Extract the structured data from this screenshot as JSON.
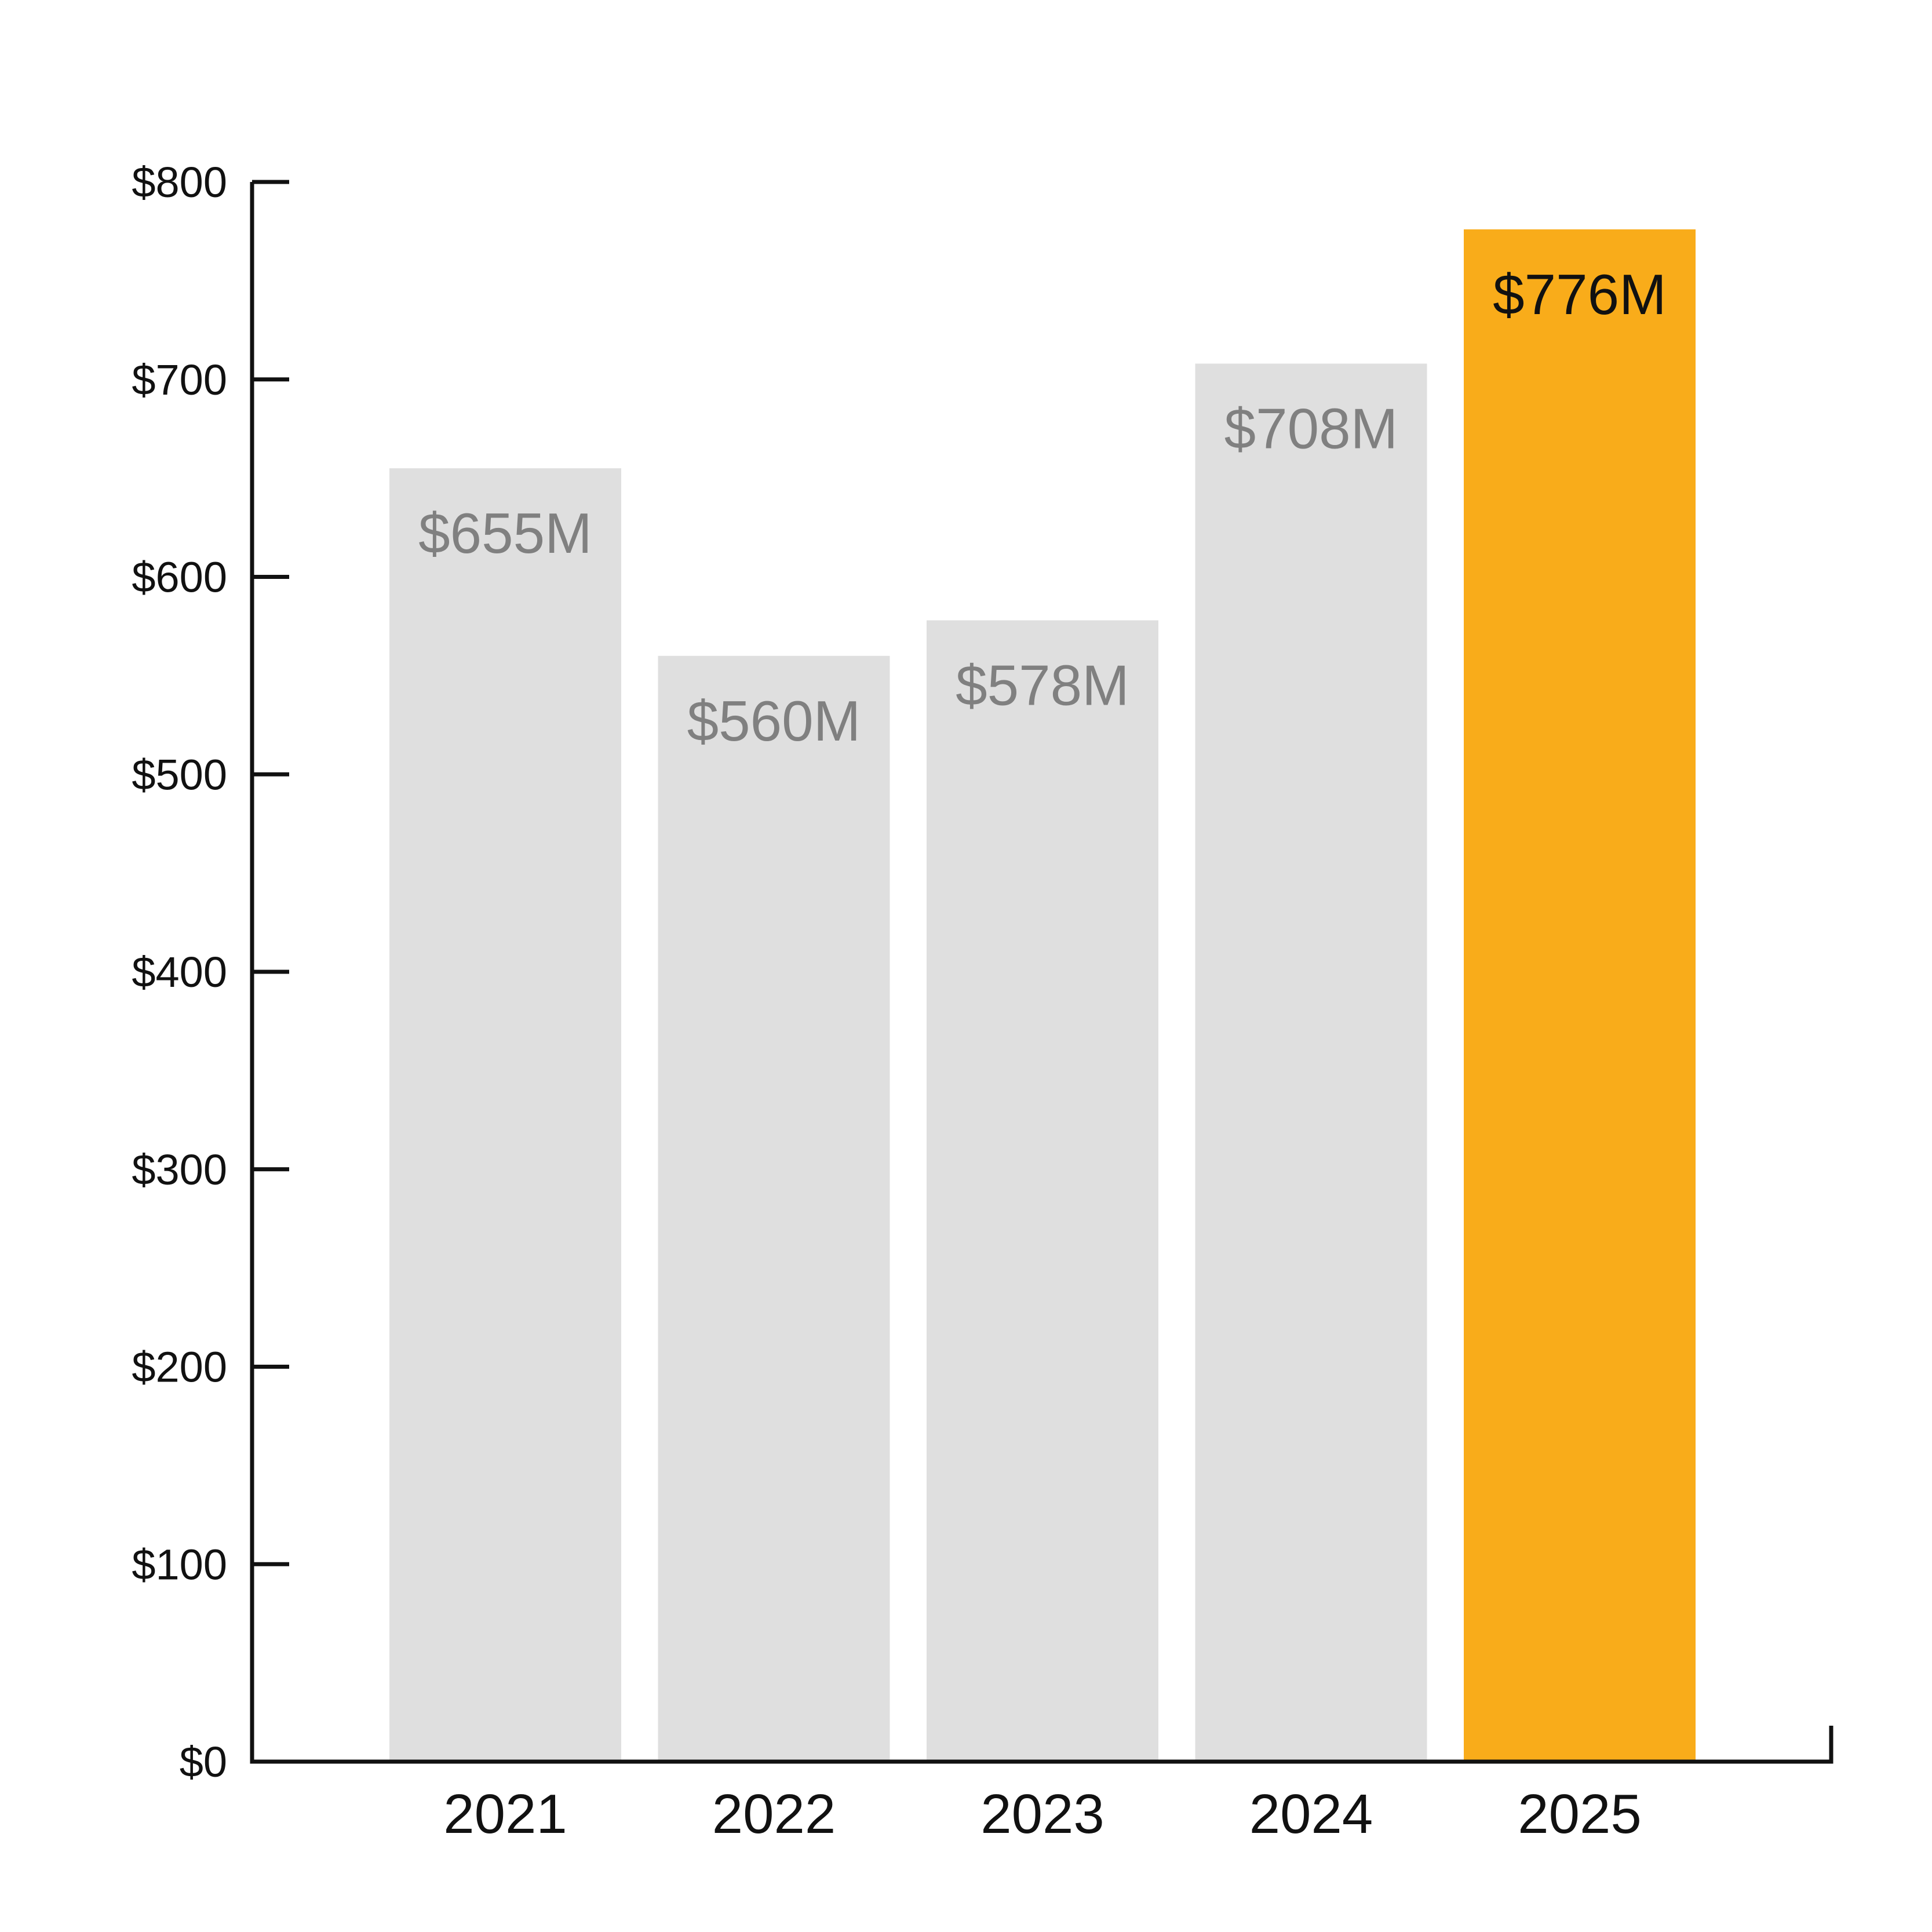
{
  "chart_data": {
    "type": "bar",
    "categories": [
      "2021",
      "2022",
      "2023",
      "2024",
      "2025"
    ],
    "values": [
      655,
      560,
      578,
      708,
      776
    ],
    "data_labels": [
      "$655M",
      "$560M",
      "$578M",
      "$708M",
      "$776M"
    ],
    "highlight_index": 4,
    "y_ticks": [
      0,
      100,
      200,
      300,
      400,
      500,
      600,
      700,
      800
    ],
    "y_tick_labels": [
      "$0",
      "$100",
      "$200",
      "$300",
      "$400",
      "$500",
      "$600",
      "$700",
      "$800"
    ],
    "ylim": [
      0,
      800
    ],
    "title": "",
    "xlabel": "",
    "ylabel": "",
    "grid": false,
    "legend": "none",
    "colors": {
      "bar_default": "#dfdfdf",
      "bar_highlight": "#f9ac1a",
      "label_default": "#808080",
      "label_highlight": "#111111",
      "axis": "#111111",
      "background": "#ffffff"
    }
  }
}
